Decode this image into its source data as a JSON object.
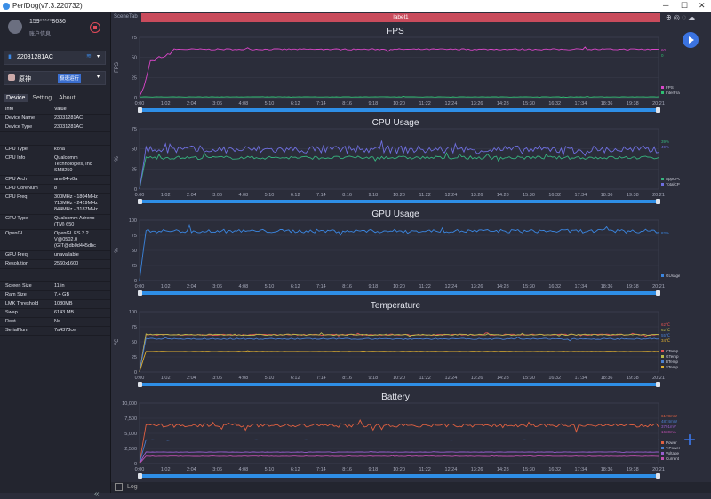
{
  "window": {
    "title": "PerfDog(v7.3.220732)"
  },
  "user": {
    "name": "159*****8636",
    "sub": "账户信息"
  },
  "device": {
    "name": "22081281AC"
  },
  "app": {
    "name": "原神",
    "badge": "极速运行"
  },
  "tabs": [
    "Device",
    "Setting",
    "About"
  ],
  "info_header": {
    "k": "Info",
    "v": "Value"
  },
  "info_rows": [
    {
      "k": "Device Name",
      "v": "23031281AC"
    },
    {
      "k": "Device Type",
      "v": "23031281AC"
    },
    {
      "gap": true
    },
    {
      "k": "CPU Type",
      "v": "kona"
    },
    {
      "k": "CPU Info",
      "v": "Qualcomm\nTechnologies, Inc\nSM8250"
    },
    {
      "k": "CPU Arch",
      "v": "arm64-v8a"
    },
    {
      "k": "CPU CoreNum",
      "v": "8"
    },
    {
      "k": "CPU Freq",
      "v": "300MHz - 1804MHz\n710MHz - 2419MHz\n844MHz - 3187MHz"
    },
    {
      "k": "GPU Type",
      "v": "Qualcomm Adreno\n(TM) 650"
    },
    {
      "k": "OpenGL",
      "v": "OpenGL ES 3.2\nV@0502.0\n(GIT@db0d445dbc"
    },
    {
      "k": "GPU Freq",
      "v": "unavailable"
    },
    {
      "k": "Resolution",
      "v": "2560x1600"
    },
    {
      "gap": true
    },
    {
      "k": "Screen Size",
      "v": "11 in"
    },
    {
      "k": "Ram Size",
      "v": "7.4 GB"
    },
    {
      "k": "LMK Threshold",
      "v": "1080MB"
    },
    {
      "k": "Swap",
      "v": "6143 MB"
    },
    {
      "k": "Root",
      "v": "No"
    },
    {
      "k": "SerialNum",
      "v": "7a4373ce"
    }
  ],
  "scene": {
    "label": "SceneTab",
    "tab": "label1"
  },
  "bottom": {
    "log": "Log"
  },
  "icons": [
    "play-icon",
    "plus-icon",
    "collapse-icon"
  ],
  "x_ticks": [
    "0:00",
    "1:02",
    "2:04",
    "3:06",
    "4:08",
    "5:10",
    "6:12",
    "7:14",
    "8:16",
    "9:18",
    "10:20",
    "11:22",
    "12:24",
    "13:26",
    "14:28",
    "15:30",
    "16:32",
    "17:34",
    "18:36",
    "19:38",
    "20:21"
  ],
  "chart_data": [
    {
      "type": "line",
      "title": "FPS",
      "ylabel": "FPS",
      "ylim": [
        0,
        75
      ],
      "yticks": [
        "75",
        "50",
        "25",
        "0"
      ],
      "series": [
        {
          "name": "FPS",
          "color": "#d946c8",
          "base": 60,
          "noise": 0.8,
          "start": 0,
          "ramp": [
            [
              0,
              0
            ],
            [
              0.01,
              15
            ],
            [
              0.02,
              45
            ],
            [
              0.06,
              55
            ],
            [
              0.065,
              60
            ]
          ]
        },
        {
          "name": "InterFrame",
          "color": "#2fbf71",
          "base": 1,
          "noise": 0.2
        }
      ],
      "values": [
        "60",
        "0"
      ]
    },
    {
      "type": "line",
      "title": "CPU Usage",
      "ylabel": "%",
      "ylim": [
        0,
        75
      ],
      "yticks": [
        "75",
        "50",
        "25",
        "0"
      ],
      "series": [
        {
          "name": "AppCPU",
          "color": "#36b37e",
          "base": 39,
          "noise": 2
        },
        {
          "name": "TotalCPU",
          "color": "#6f6fe0",
          "base": 49,
          "noise": 5
        }
      ],
      "values": [
        "39%",
        "49%"
      ]
    },
    {
      "type": "line",
      "title": "GPU Usage",
      "ylabel": "%",
      "ylim": [
        0,
        100
      ],
      "yticks": [
        "100",
        "75",
        "50",
        "25",
        "0"
      ],
      "series": [
        {
          "name": "GUsage",
          "color": "#3b86e0",
          "base": 82,
          "noise": 3
        }
      ],
      "values": [
        "82%"
      ]
    },
    {
      "type": "line",
      "title": "Temperature",
      "ylabel": "℃",
      "ylim": [
        0,
        100
      ],
      "yticks": [
        "100",
        "75",
        "50",
        "25",
        "0"
      ],
      "series": [
        {
          "name": "CTemp",
          "color": "#e05252",
          "base": 62,
          "noise": 1
        },
        {
          "name": "GTemp",
          "color": "#b8b84a",
          "base": 62,
          "noise": 1
        },
        {
          "name": "BTemp",
          "color": "#4a7fd0",
          "base": 55,
          "noise": 1
        },
        {
          "name": "STemp",
          "color": "#e0b030",
          "base": 34,
          "noise": 0.3
        }
      ],
      "values": [
        "62℃",
        "62℃",
        "55℃",
        "34℃"
      ]
    },
    {
      "type": "line",
      "title": "Battery",
      "ylabel": "",
      "ylim": [
        0,
        10000
      ],
      "yticks": [
        "10,000",
        "7,500",
        "5,000",
        "2,500",
        "0"
      ],
      "series": [
        {
          "name": "Power",
          "color": "#e06040",
          "base": 6300,
          "noise": 300
        },
        {
          "name": "T.Power",
          "color": "#4a7fd0",
          "base": 3900,
          "noise": 20
        },
        {
          "name": "Voltage",
          "color": "#9a5fd0",
          "base": 1900,
          "noise": 30
        },
        {
          "name": "Current",
          "color": "#c050b0",
          "base": 1200,
          "noise": 40
        }
      ],
      "values": [
        "6178mW",
        "4874mW",
        "3791mV",
        "1630mA"
      ]
    }
  ]
}
